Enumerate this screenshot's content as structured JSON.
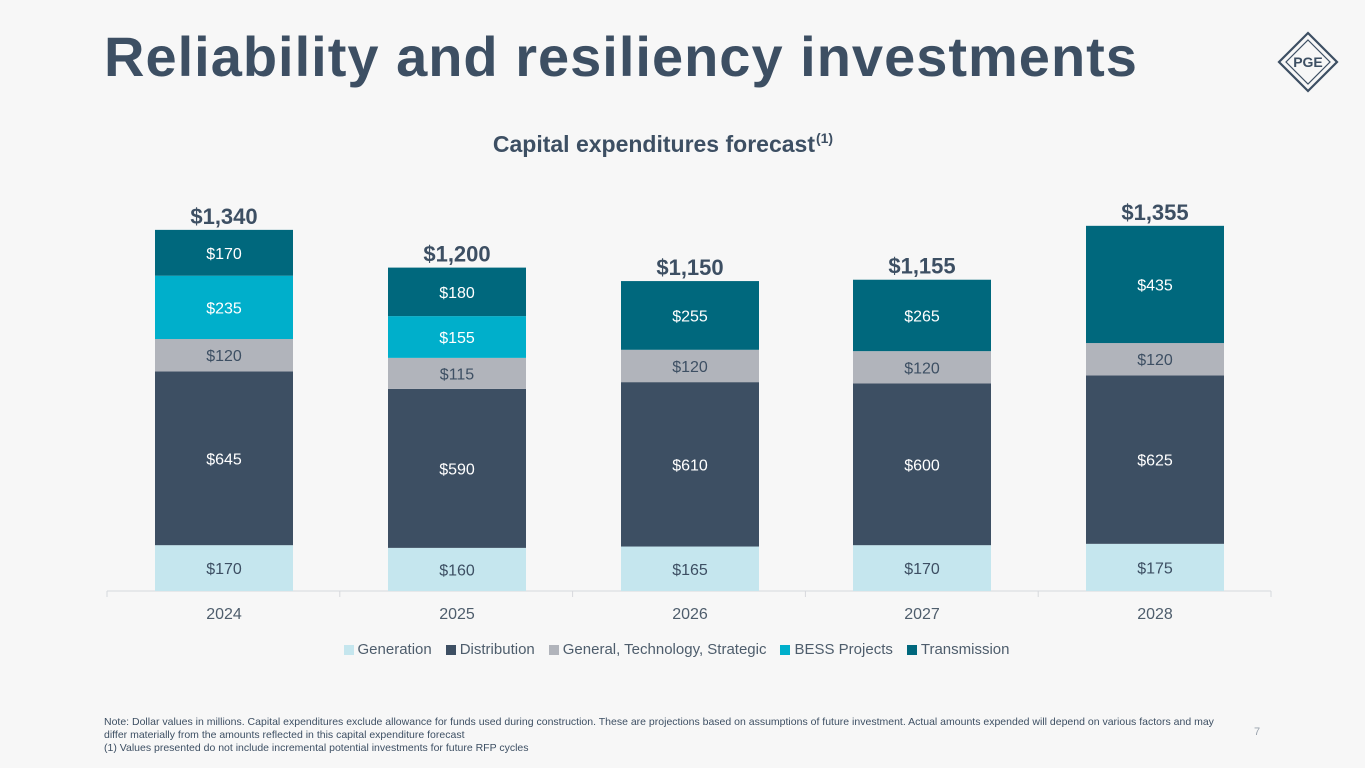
{
  "page": {
    "title": "Reliability and resiliency investments",
    "logo_text": "PGE",
    "subtitle": "Capital expenditures forecast",
    "subtitle_sup": "(1)",
    "note_line1": "Note: Dollar values in millions. Capital expenditures exclude allowance for funds used during construction. These are projections based on assumptions of future investment. Actual amounts expended will depend on various factors and may differ materially from the amounts reflected in this capital expenditure forecast",
    "note_line2": "(1) Values presented do not include incremental potential investments for future RFP cycles",
    "page_number": "7"
  },
  "chart_data": {
    "type": "bar",
    "stacked": true,
    "title": "Capital expenditures forecast(1)",
    "xlabel": "",
    "ylabel": "",
    "unit": "$ millions",
    "categories": [
      "2024",
      "2025",
      "2026",
      "2027",
      "2028"
    ],
    "series": [
      {
        "name": "Generation",
        "color": "#c5e6ee",
        "values": [
          170,
          160,
          165,
          170,
          175
        ]
      },
      {
        "name": "Distribution",
        "color": "#3d4f63",
        "values": [
          645,
          590,
          610,
          600,
          625
        ]
      },
      {
        "name": "General, Technology, Strategic",
        "color": "#b1b4bb",
        "values": [
          120,
          115,
          120,
          120,
          120
        ]
      },
      {
        "name": "BESS Projects",
        "color": "#00afcb",
        "values": [
          235,
          155,
          0,
          0,
          0
        ]
      },
      {
        "name": "Transmission",
        "color": "#00687d",
        "values": [
          170,
          180,
          255,
          265,
          435
        ]
      }
    ],
    "totals": [
      1340,
      1200,
      1150,
      1155,
      1355
    ],
    "total_labels": [
      "$1,340",
      "$1,200",
      "$1,150",
      "$1,155",
      "$1,355"
    ],
    "value_labels": [
      [
        "$170",
        "$160",
        "$165",
        "$170",
        "$175"
      ],
      [
        "$645",
        "$590",
        "$610",
        "$600",
        "$625"
      ],
      [
        "$120",
        "$115",
        "$120",
        "$120",
        "$120"
      ],
      [
        "$235",
        "$155",
        "",
        "",
        ""
      ],
      [
        "$170",
        "$180",
        "$255",
        "$265",
        "$435"
      ]
    ],
    "ylim": [
      0,
      1400
    ],
    "grid": false,
    "legend_position": "bottom"
  }
}
